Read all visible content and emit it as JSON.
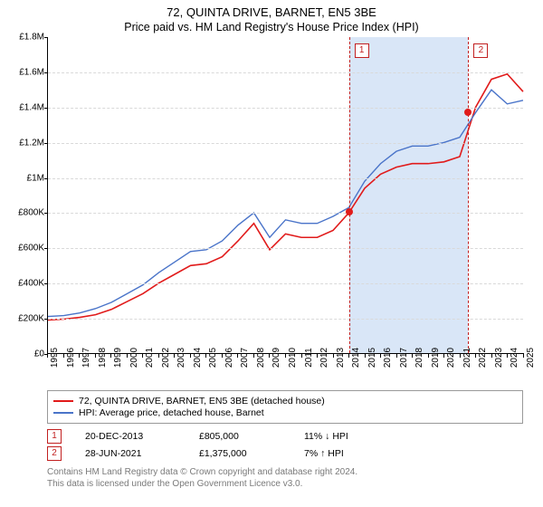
{
  "title": "72, QUINTA DRIVE, BARNET, EN5 3BE",
  "subtitle": "Price paid vs. HM Land Registry's House Price Index (HPI)",
  "chart": {
    "type": "line",
    "background_color": "#ffffff",
    "grid_color": "#d9d9d9",
    "axis_color": "#000000",
    "x_years": [
      1995,
      1996,
      1997,
      1998,
      1999,
      2000,
      2001,
      2002,
      2003,
      2004,
      2005,
      2006,
      2007,
      2008,
      2009,
      2010,
      2011,
      2012,
      2013,
      2014,
      2015,
      2016,
      2017,
      2018,
      2019,
      2020,
      2021,
      2022,
      2023,
      2024,
      2025
    ],
    "series": [
      {
        "name": "property",
        "color": "#e11b1b",
        "width": 1.6,
        "y": [
          190,
          195,
          205,
          220,
          250,
          295,
          340,
          400,
          450,
          500,
          510,
          550,
          640,
          740,
          590,
          680,
          660,
          660,
          700,
          800,
          940,
          1020,
          1060,
          1080,
          1080,
          1090,
          1120,
          1400,
          1560,
          1590,
          1490
        ]
      },
      {
        "name": "hpi",
        "color": "#4a74c9",
        "width": 1.4,
        "y": [
          210,
          215,
          230,
          255,
          290,
          340,
          390,
          460,
          520,
          580,
          590,
          640,
          730,
          800,
          660,
          760,
          740,
          740,
          780,
          830,
          980,
          1080,
          1150,
          1180,
          1180,
          1200,
          1230,
          1370,
          1500,
          1420,
          1440
        ]
      }
    ],
    "ylim": [
      0,
      1800000
    ],
    "ytick_step": 200000,
    "y_tick_labels": [
      "£0",
      "£200K",
      "£400K",
      "£600K",
      "£800K",
      "£1M",
      "£1.2M",
      "£1.4M",
      "£1.6M",
      "£1.8M"
    ],
    "shaded_band": {
      "from_year": 2013.97,
      "to_year": 2021.49,
      "fill": "#d9e6f7",
      "outline": "#c22020",
      "dash": "3,3"
    },
    "callouts": [
      {
        "n": "1",
        "year": 2013.97,
        "box_color": "#c22020"
      },
      {
        "n": "2",
        "year": 2021.49,
        "box_color": "#c22020"
      }
    ],
    "points": [
      {
        "year": 2013.97,
        "value": 805000,
        "color": "#e11b1b"
      },
      {
        "year": 2021.49,
        "value": 1375000,
        "color": "#e11b1b"
      }
    ]
  },
  "legend": {
    "items": [
      {
        "color": "#e11b1b",
        "label": "72, QUINTA DRIVE, BARNET, EN5 3BE (detached house)"
      },
      {
        "color": "#4a74c9",
        "label": "HPI: Average price, detached house, Barnet"
      }
    ]
  },
  "transactions": [
    {
      "n": "1",
      "box_color": "#c22020",
      "date": "20-DEC-2013",
      "price": "£805,000",
      "delta": "11% ↓ HPI"
    },
    {
      "n": "2",
      "box_color": "#c22020",
      "date": "28-JUN-2021",
      "price": "£1,375,000",
      "delta": "7% ↑ HPI"
    }
  ],
  "footer": {
    "line1": "Contains HM Land Registry data © Crown copyright and database right 2024.",
    "line2": "This data is licensed under the Open Government Licence v3.0."
  }
}
